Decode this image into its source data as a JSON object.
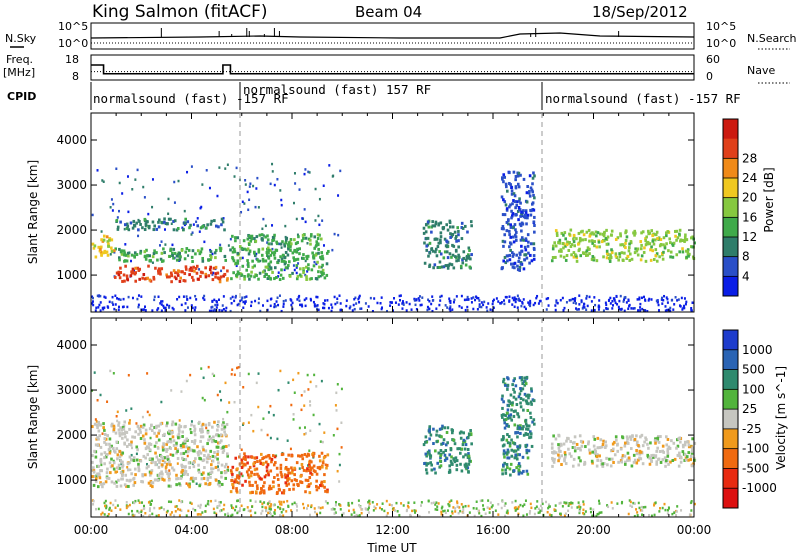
{
  "header": {
    "station": "King Salmon (fitACF)",
    "beam": "Beam 04",
    "date": "18/Sep/2012"
  },
  "sky_panel": {
    "left_label": "N.Sky",
    "right_label": "N.Search",
    "left_ticks": [
      "10^5",
      "10^0"
    ],
    "right_ticks": [
      "10^5",
      "10^0"
    ]
  },
  "freq_panel": {
    "left_label_1": "Freq.",
    "left_label_2": "[MHz]",
    "right_label": "Nave",
    "left_ticks": [
      "18",
      "8"
    ],
    "right_ticks": [
      "60",
      "0"
    ],
    "freq_steps": [
      {
        "t_hours": 0.0,
        "freq": 14
      },
      {
        "t_hours": 0.5,
        "freq": 10.5
      },
      {
        "t_hours": 5.25,
        "freq": 14
      },
      {
        "t_hours": 5.55,
        "freq": 10.5
      },
      {
        "t_hours": 24.0,
        "freq": 10.5
      }
    ],
    "nave_level": 20
  },
  "cpid": {
    "label": "CPID",
    "segments": [
      {
        "label": "normalsound (fast) -157 RF",
        "start_h": 0.0,
        "end_h": 6.0
      },
      {
        "label": "normalsound (fast) 157 RF",
        "start_h": 6.0,
        "end_h": 18.1
      },
      {
        "label": "normalsound (fast) -157 RF",
        "start_h": 18.1,
        "end_h": 24.0
      }
    ]
  },
  "chart_data": [
    {
      "type": "heatmap",
      "panel": "power",
      "ylabel": "Slant Range [km]",
      "xlabel": "",
      "ylim": [
        180,
        4600
      ],
      "xlim_hours": [
        0,
        24
      ],
      "y_ticks": [
        1000,
        2000,
        3000,
        4000
      ],
      "colorbar": {
        "title": "Power [dB]",
        "ticks": [
          "4",
          "8",
          "12",
          "16",
          "20",
          "24",
          "28"
        ],
        "colors": [
          "#0a1ee6",
          "#2a4fc8",
          "#2f7d6a",
          "#3faa4a",
          "#86c840",
          "#f0c820",
          "#f08a18",
          "#e0401a",
          "#cc1a10"
        ]
      },
      "regions": [
        {
          "h0": 0.9,
          "h1": 5.4,
          "r0": 850,
          "r1": 1200,
          "level": 24
        },
        {
          "h0": 0.9,
          "h1": 5.4,
          "r0": 1300,
          "r1": 1600,
          "level": 14
        },
        {
          "h0": 0.9,
          "h1": 5.3,
          "r0": 2000,
          "r1": 2250,
          "level": 10
        },
        {
          "h0": 0.0,
          "h1": 0.9,
          "r0": 1400,
          "r1": 1900,
          "level": 18
        },
        {
          "h0": 5.5,
          "h1": 9.4,
          "r0": 900,
          "r1": 1900,
          "level": 14
        },
        {
          "h0": 13.2,
          "h1": 15.1,
          "r0": 1150,
          "r1": 2200,
          "level": 10
        },
        {
          "h0": 16.3,
          "h1": 17.6,
          "r0": 1100,
          "r1": 3300,
          "level": 7
        },
        {
          "h0": 18.3,
          "h1": 24.0,
          "r0": 1300,
          "r1": 2000,
          "level": 16
        }
      ]
    },
    {
      "type": "heatmap",
      "panel": "velocity",
      "ylabel": "Slant Range [km]",
      "xlabel": "Time UT",
      "ylim": [
        180,
        4600
      ],
      "xlim_hours": [
        0,
        24
      ],
      "y_ticks": [
        1000,
        2000,
        3000,
        4000
      ],
      "x_ticks": [
        "00:00",
        "04:00",
        "08:00",
        "12:00",
        "16:00",
        "20:00",
        "00:00"
      ],
      "colorbar": {
        "title": "Velocity [m s^-1]",
        "ticks": [
          "1000",
          "500",
          "100",
          "25",
          "-25",
          "-100",
          "-500",
          "-1000"
        ],
        "colors": [
          "#1e3ccc",
          "#2a64b4",
          "#2f8a6e",
          "#52b43c",
          "#c6c6c0",
          "#f09a1c",
          "#f06a10",
          "#e82a10",
          "#dd1010"
        ]
      },
      "regions": [
        {
          "h0": 0.0,
          "h1": 5.4,
          "r0": 850,
          "r1": 2300,
          "level": "ground"
        },
        {
          "h0": 5.5,
          "h1": 9.4,
          "r0": 700,
          "r1": 1600,
          "level": "neg500"
        },
        {
          "h0": 13.2,
          "h1": 15.1,
          "r0": 1150,
          "r1": 2200,
          "level": "pos100"
        },
        {
          "h0": 16.3,
          "h1": 17.6,
          "r0": 1100,
          "r1": 3300,
          "level": "pos100"
        },
        {
          "h0": 18.3,
          "h1": 24.0,
          "r0": 1300,
          "r1": 2000,
          "level": "ground"
        }
      ]
    }
  ]
}
